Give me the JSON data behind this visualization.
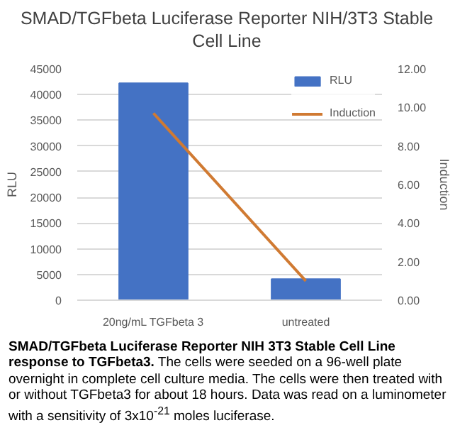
{
  "chart_data": {
    "type": "bar",
    "title": "SMAD/TGFbeta Luciferase Reporter NIH/3T3 Stable Cell Line",
    "categories": [
      "20ng/mL TGFbeta 3",
      "untreated"
    ],
    "series": [
      {
        "name": "RLU",
        "color": "#4472c4",
        "values": [
          42200,
          4100
        ]
      },
      {
        "name": "Induction",
        "type": "line",
        "axis": "y2",
        "color": "#d07a32",
        "values": [
          9.7,
          1.0
        ]
      }
    ],
    "ylabel": "RLU",
    "y2label": "Induction",
    "ylim": [
      0,
      45000
    ],
    "yticks": [
      0,
      5000,
      10000,
      15000,
      20000,
      25000,
      30000,
      35000,
      40000,
      45000
    ],
    "y2lim": [
      0,
      12
    ],
    "y2ticks": [
      {
        "value": 0,
        "label": "0.00"
      },
      {
        "value": 2,
        "label": "2.00"
      },
      {
        "value": 4,
        "label": "4.00"
      },
      {
        "value": 6,
        "label": "6.00"
      },
      {
        "value": 8,
        "label": "8.00"
      },
      {
        "value": 10,
        "label": "10.00"
      },
      {
        "value": 12,
        "label": "12.00"
      }
    ],
    "grid": "y",
    "legend": "top right",
    "annotations": [
      "SMAD/TGFbeta Luciferase Reporter NIH 3T3 Stable Cell Line response to TGFbeta3.",
      "The cells were seeded on a 96-well plate overnight in complete cell culture media. The cells were then treated with or without TGFbeta3 for about 18 hours. Data was read on a luminometer with a sensitivity of 3x10$^{-21}$ moles luciferase."
    ]
  }
}
